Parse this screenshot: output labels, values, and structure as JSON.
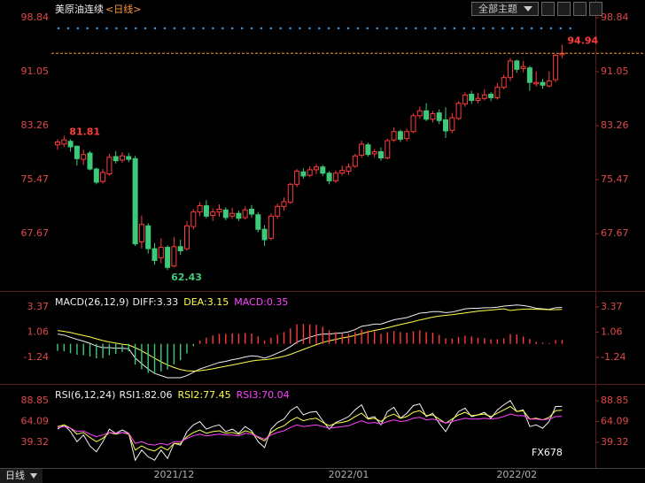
{
  "header": {
    "instrument": "美原油连续",
    "period": "<日线>",
    "menu": "全部主题",
    "tab": "日线",
    "watermark": "FX678"
  },
  "chart_data": [
    {
      "type": "candlestick",
      "categories": [
        null,
        null,
        null,
        null,
        null,
        null,
        null,
        null,
        null,
        null,
        null,
        null,
        null,
        null,
        null,
        null,
        null,
        null,
        "2021/12",
        null,
        null,
        null,
        null,
        null,
        null,
        null,
        null,
        null,
        null,
        null,
        null,
        null,
        null,
        null,
        null,
        null,
        null,
        null,
        null,
        null,
        null,
        null,
        null,
        null,
        null,
        "2022/01",
        null,
        null,
        null,
        null,
        null,
        null,
        null,
        null,
        null,
        null,
        null,
        null,
        null,
        null,
        null,
        null,
        null,
        null,
        null,
        null,
        null,
        null,
        null,
        null,
        null,
        "2022/02",
        null,
        null,
        null,
        null,
        null,
        null,
        null
      ],
      "open": [
        80.5,
        80.6,
        81.0,
        80.3,
        78.4,
        79.3,
        77.0,
        75.2,
        76.3,
        78.8,
        78.3,
        78.8,
        78.5,
        66.5,
        68.8,
        65.5,
        64.2,
        65.7,
        63.0,
        65.8,
        65.5,
        68.7,
        70.8,
        71.7,
        70.3,
        70.8,
        71.1,
        70.2,
        70.6,
        70.0,
        71.2,
        70.4,
        68.3,
        67.0,
        70.2,
        71.6,
        72.2,
        74.8,
        76.6,
        76.1,
        76.9,
        77.3,
        76.4,
        75.3,
        76.4,
        76.7,
        77.4,
        79.0,
        80.5,
        79.2,
        79.5,
        78.6,
        81.2,
        82.4,
        81.4,
        82.4,
        84.7,
        85.4,
        84.2,
        85.1,
        84.1,
        82.6,
        84.3,
        86.4,
        87.8,
        86.9,
        87.2,
        87.8,
        87.3,
        88.8,
        90.2,
        92.6,
        91.5,
        91.6,
        89.3,
        89.5,
        89.0,
        89.9,
        93.5
      ],
      "high": [
        81.3,
        81.81,
        81.3,
        80.4,
        79.8,
        79.6,
        77.2,
        77.0,
        79.2,
        79.6,
        79.4,
        79.3,
        78.9,
        70.3,
        69.2,
        66.3,
        67.0,
        66.0,
        67.2,
        66.8,
        69.5,
        71.2,
        72.2,
        72.5,
        71.3,
        71.9,
        71.5,
        71.4,
        71.0,
        71.6,
        71.8,
        70.8,
        68.9,
        70.6,
        72.0,
        72.9,
        75.0,
        77.0,
        77.1,
        77.4,
        77.7,
        77.6,
        76.7,
        76.8,
        77.5,
        77.8,
        79.2,
        81.1,
        80.8,
        79.9,
        80.1,
        81.4,
        83.0,
        82.7,
        82.8,
        85.0,
        86.0,
        86.5,
        85.4,
        85.6,
        85.9,
        85.1,
        86.8,
        88.1,
        88.3,
        88.0,
        88.5,
        88.1,
        89.4,
        90.6,
        93.0,
        92.8,
        92.6,
        91.9,
        91.1,
        90.0,
        91.1,
        93.6,
        94.94
      ],
      "low": [
        79.8,
        80.2,
        79.5,
        77.5,
        77.6,
        76.8,
        74.8,
        74.9,
        76.0,
        77.8,
        77.9,
        78.0,
        65.9,
        65.5,
        64.8,
        63.2,
        63.4,
        62.43,
        62.8,
        64.6,
        65.2,
        68.3,
        70.2,
        69.9,
        69.5,
        70.1,
        69.6,
        69.8,
        69.5,
        69.7,
        70.0,
        67.9,
        65.9,
        66.7,
        69.8,
        71.0,
        72.0,
        74.4,
        75.6,
        75.8,
        76.3,
        76.0,
        74.8,
        75.0,
        76.1,
        76.2,
        77.2,
        78.6,
        78.8,
        78.7,
        78.2,
        78.4,
        80.9,
        80.9,
        81.0,
        82.2,
        84.3,
        83.9,
        83.7,
        83.5,
        81.5,
        82.2,
        84.1,
        86.0,
        86.4,
        86.5,
        86.9,
        86.8,
        87.0,
        88.5,
        89.7,
        90.9,
        91.0,
        88.3,
        88.9,
        88.6,
        88.8,
        89.5,
        93.0
      ],
      "close": [
        80.9,
        81.2,
        80.2,
        78.5,
        79.1,
        77.0,
        75.1,
        76.5,
        78.7,
        78.2,
        78.9,
        78.4,
        66.2,
        69.0,
        65.5,
        63.8,
        65.7,
        62.8,
        65.8,
        65.2,
        68.8,
        70.8,
        71.7,
        70.2,
        70.8,
        71.2,
        70.0,
        70.6,
        69.9,
        71.1,
        70.5,
        68.3,
        66.8,
        70.2,
        71.6,
        72.3,
        74.8,
        76.7,
        76.0,
        76.9,
        77.3,
        76.4,
        75.3,
        76.4,
        76.8,
        77.3,
        78.9,
        80.6,
        79.1,
        79.5,
        78.6,
        81.1,
        82.4,
        81.3,
        82.4,
        84.7,
        85.4,
        84.2,
        85.0,
        84.0,
        82.5,
        84.4,
        86.5,
        87.7,
        86.9,
        87.2,
        87.7,
        87.3,
        88.8,
        90.2,
        92.6,
        91.4,
        91.8,
        89.5,
        89.5,
        89.1,
        89.7,
        93.4,
        93.7
      ],
      "up_color": "#ff3b3b",
      "down_color": "#3ec97a",
      "last_price_line_color": "#ff9933",
      "annotations": [
        81.81,
        62.43,
        94.94
      ],
      "ylim": [
        59.9,
        101.4
      ],
      "yticks": [
        67.67,
        75.47,
        83.26,
        91.05,
        98.84
      ]
    },
    {
      "type": "line",
      "title": "MACD(26,12,9)",
      "series": [
        {
          "name": "DIFF:3.33",
          "type": "line",
          "color": "#f0f0f0",
          "values": [
            0.9,
            0.8,
            0.6,
            0.4,
            0.25,
            0.05,
            -0.2,
            -0.35,
            -0.35,
            -0.4,
            -0.4,
            -0.45,
            -1.3,
            -1.8,
            -2.3,
            -2.7,
            -2.9,
            -3.1,
            -3.1,
            -3.1,
            -2.9,
            -2.6,
            -2.3,
            -2.1,
            -1.9,
            -1.7,
            -1.6,
            -1.45,
            -1.35,
            -1.2,
            -1.1,
            -1.15,
            -1.3,
            -1.1,
            -0.85,
            -0.6,
            -0.25,
            0.15,
            0.4,
            0.6,
            0.8,
            0.9,
            0.9,
            0.95,
            1.0,
            1.1,
            1.3,
            1.6,
            1.7,
            1.8,
            1.8,
            2.0,
            2.2,
            2.3,
            2.4,
            2.6,
            2.8,
            2.85,
            2.95,
            2.95,
            2.85,
            2.9,
            3.05,
            3.2,
            3.25,
            3.25,
            3.3,
            3.3,
            3.35,
            3.45,
            3.5,
            3.55,
            3.5,
            3.4,
            3.25,
            3.2,
            3.15,
            3.3,
            3.33
          ]
        },
        {
          "name": "DEA:3.15",
          "type": "line",
          "color": "#ffff4a",
          "values": [
            1.22,
            1.14,
            1.03,
            0.9,
            0.77,
            0.63,
            0.46,
            0.3,
            0.17,
            0.06,
            -0.03,
            -0.11,
            -0.35,
            -0.64,
            -0.97,
            -1.32,
            -1.64,
            -1.93,
            -2.16,
            -2.35,
            -2.46,
            -2.49,
            -2.45,
            -2.38,
            -2.28,
            -2.16,
            -2.05,
            -1.93,
            -1.81,
            -1.69,
            -1.57,
            -1.49,
            -1.45,
            -1.38,
            -1.27,
            -1.14,
            -0.96,
            -0.74,
            -0.51,
            -0.29,
            -0.07,
            0.12,
            0.28,
            0.41,
            0.53,
            0.64,
            0.77,
            0.94,
            1.09,
            1.23,
            1.34,
            1.47,
            1.62,
            1.76,
            1.89,
            2.03,
            2.18,
            2.31,
            2.44,
            2.54,
            2.6,
            2.66,
            2.74,
            2.83,
            2.91,
            2.98,
            3.04,
            3.09,
            3.14,
            3.2,
            3.05,
            3.12,
            3.17,
            3.18,
            3.16,
            3.14,
            3.12,
            3.13,
            3.15
          ]
        },
        {
          "name": "MACD:0.35",
          "type": "bar",
          "color": "#ff3b3b",
          "negative_color": "#3ec97a",
          "legend_color": "#ff44ff",
          "values": [
            -0.64,
            -0.68,
            -0.86,
            -1.0,
            -1.04,
            -1.16,
            -1.32,
            -1.3,
            -1.04,
            -0.92,
            -0.74,
            -0.68,
            -1.9,
            -2.32,
            -2.66,
            -2.76,
            -2.52,
            -2.34,
            -1.88,
            -1.5,
            -0.88,
            -0.22,
            0.3,
            0.56,
            0.76,
            0.92,
            0.9,
            0.96,
            0.92,
            0.98,
            0.94,
            0.68,
            0.3,
            0.56,
            0.84,
            1.08,
            1.42,
            1.78,
            1.82,
            1.78,
            1.74,
            1.56,
            1.24,
            1.08,
            0.94,
            0.92,
            1.06,
            1.32,
            1.22,
            1.14,
            0.92,
            1.06,
            1.16,
            1.08,
            1.02,
            1.14,
            1.24,
            1.08,
            1.02,
            0.82,
            0.5,
            0.48,
            0.62,
            0.74,
            0.68,
            0.54,
            0.52,
            0.42,
            0.42,
            0.5,
            0.9,
            0.86,
            0.66,
            0.44,
            0.18,
            0.12,
            0.06,
            0.34,
            0.35
          ]
        }
      ],
      "ylim": [
        -3.34,
        4.34
      ],
      "yticks": [
        -1.24,
        1.06,
        3.37
      ]
    },
    {
      "type": "line",
      "title": "RSI(6,12,24)",
      "series": [
        {
          "name": "RSI1:82.06",
          "type": "line",
          "color": "#f0f0f0",
          "values": [
            55,
            60,
            52,
            40,
            48,
            35,
            28,
            40,
            55,
            50,
            54,
            50,
            18,
            30,
            22,
            18,
            30,
            20,
            38,
            36,
            52,
            60,
            64,
            55,
            58,
            60,
            52,
            55,
            50,
            58,
            53,
            40,
            33,
            55,
            63,
            67,
            77,
            82,
            72,
            75,
            76,
            65,
            55,
            63,
            66,
            70,
            78,
            84,
            68,
            70,
            60,
            76,
            81,
            68,
            74,
            83,
            85,
            70,
            74,
            62,
            52,
            65,
            76,
            80,
            70,
            72,
            75,
            68,
            78,
            84,
            89,
            76,
            78,
            58,
            60,
            56,
            64,
            82,
            82.06
          ]
        },
        {
          "name": "RSI2:77.45",
          "type": "line",
          "color": "#ffff4a",
          "values": [
            58,
            60,
            56,
            49,
            51,
            45,
            40,
            44,
            51,
            49,
            51,
            49,
            30,
            35,
            31,
            29,
            34,
            30,
            38,
            38,
            46,
            51,
            54,
            50,
            52,
            53,
            50,
            51,
            49,
            53,
            51,
            45,
            41,
            51,
            56,
            59,
            65,
            69,
            65,
            67,
            68,
            63,
            59,
            62,
            63,
            65,
            70,
            74,
            67,
            68,
            64,
            70,
            73,
            68,
            70,
            75,
            77,
            71,
            72,
            67,
            62,
            67,
            72,
            75,
            71,
            72,
            73,
            70,
            74,
            78,
            82,
            76,
            77,
            67,
            68,
            66,
            69,
            77,
            77.45
          ]
        },
        {
          "name": "RSI3:70.04",
          "type": "line",
          "color": "#ff44ff",
          "values": [
            57,
            58,
            56,
            52,
            53,
            49,
            46,
            48,
            51,
            50,
            51,
            50,
            38,
            40,
            37,
            36,
            38,
            36,
            40,
            40,
            44,
            47,
            49,
            47,
            48,
            49,
            48,
            48,
            47,
            50,
            49,
            46,
            43,
            48,
            51,
            53,
            57,
            60,
            58,
            59,
            60,
            58,
            56,
            57,
            58,
            59,
            62,
            65,
            62,
            63,
            61,
            64,
            66,
            64,
            65,
            68,
            69,
            66,
            67,
            65,
            62,
            64,
            66,
            68,
            67,
            67,
            68,
            67,
            68,
            70,
            73,
            71,
            71,
            67,
            67,
            66,
            67,
            70,
            70.04
          ]
        }
      ],
      "ylim": [
        9.8,
        102.5
      ],
      "yticks": [
        39.32,
        64.09,
        88.85
      ]
    }
  ]
}
